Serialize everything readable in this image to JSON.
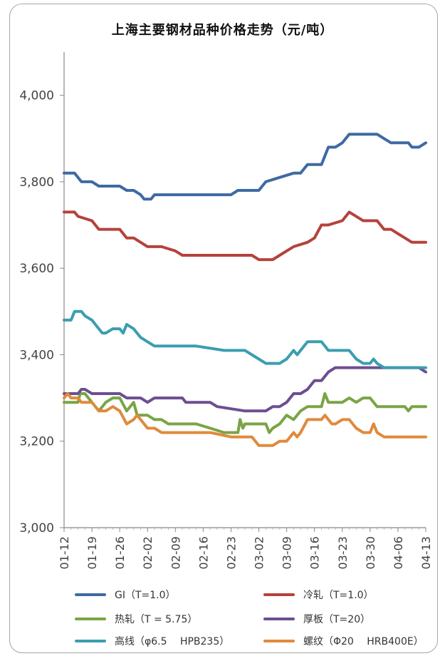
{
  "chart_data": {
    "type": "line",
    "title": "上海主要钢材品种价格走势（元/吨）",
    "xlabel": "",
    "ylabel": "",
    "ylim": [
      3000,
      4100
    ],
    "yticks": [
      3000,
      3200,
      3400,
      3600,
      3800,
      4000
    ],
    "ytick_labels": [
      "3,000",
      "3,200",
      "3,400",
      "3,600",
      "3,800",
      "4,000"
    ],
    "x": [
      "01-12",
      "01-19",
      "01-26",
      "02-02",
      "02-09",
      "02-16",
      "02-23",
      "03-02",
      "03-09",
      "03-16",
      "03-23",
      "03-30",
      "04-06",
      "04-13"
    ],
    "series": [
      {
        "name": "GI（T=1.0）",
        "color": "#3e6aa3",
        "points": [
          [
            0,
            3820
          ],
          [
            1.5,
            3820
          ],
          [
            2.5,
            3800
          ],
          [
            4,
            3800
          ],
          [
            5,
            3790
          ],
          [
            8,
            3790
          ],
          [
            9,
            3780
          ],
          [
            10,
            3780
          ],
          [
            11,
            3770
          ],
          [
            11.5,
            3760
          ],
          [
            12.5,
            3760
          ],
          [
            13,
            3770
          ],
          [
            24,
            3770
          ],
          [
            25,
            3780
          ],
          [
            28,
            3780
          ],
          [
            29,
            3800
          ],
          [
            31,
            3810
          ],
          [
            33,
            3820
          ],
          [
            34,
            3820
          ],
          [
            35,
            3840
          ],
          [
            37,
            3840
          ],
          [
            38,
            3880
          ],
          [
            39,
            3880
          ],
          [
            40,
            3890
          ],
          [
            41,
            3910
          ],
          [
            45,
            3910
          ],
          [
            46,
            3900
          ],
          [
            47,
            3890
          ],
          [
            49.5,
            3890
          ],
          [
            50,
            3880
          ],
          [
            51,
            3880
          ],
          [
            52,
            3890
          ]
        ]
      },
      {
        "name": "冷轧（T=1.0）",
        "color": "#b5423c",
        "points": [
          [
            0,
            3730
          ],
          [
            1.5,
            3730
          ],
          [
            2,
            3720
          ],
          [
            4,
            3710
          ],
          [
            5,
            3690
          ],
          [
            8,
            3690
          ],
          [
            9,
            3670
          ],
          [
            10,
            3670
          ],
          [
            11,
            3660
          ],
          [
            12,
            3650
          ],
          [
            14,
            3650
          ],
          [
            16,
            3640
          ],
          [
            17,
            3630
          ],
          [
            27,
            3630
          ],
          [
            28,
            3620
          ],
          [
            30,
            3620
          ],
          [
            31,
            3630
          ],
          [
            32,
            3640
          ],
          [
            33,
            3650
          ],
          [
            35,
            3660
          ],
          [
            36,
            3670
          ],
          [
            37,
            3700
          ],
          [
            38,
            3700
          ],
          [
            40,
            3710
          ],
          [
            41,
            3730
          ],
          [
            42,
            3720
          ],
          [
            43,
            3710
          ],
          [
            45,
            3710
          ],
          [
            46,
            3690
          ],
          [
            47,
            3690
          ],
          [
            48,
            3680
          ],
          [
            49,
            3670
          ],
          [
            50,
            3660
          ],
          [
            52,
            3660
          ]
        ]
      },
      {
        "name": "热轧（T = 5.75）",
        "color": "#7aa445",
        "points": [
          [
            0,
            3290
          ],
          [
            2,
            3290
          ],
          [
            2.3,
            3310
          ],
          [
            3,
            3310
          ],
          [
            4,
            3290
          ],
          [
            5,
            3270
          ],
          [
            6,
            3290
          ],
          [
            7,
            3300
          ],
          [
            8,
            3300
          ],
          [
            9,
            3270
          ],
          [
            10,
            3290
          ],
          [
            10.5,
            3260
          ],
          [
            12,
            3260
          ],
          [
            13,
            3250
          ],
          [
            14,
            3250
          ],
          [
            15,
            3240
          ],
          [
            19,
            3240
          ],
          [
            21,
            3230
          ],
          [
            23,
            3220
          ],
          [
            25,
            3220
          ],
          [
            25.3,
            3250
          ],
          [
            25.7,
            3230
          ],
          [
            26,
            3240
          ],
          [
            29,
            3240
          ],
          [
            29.5,
            3220
          ],
          [
            30,
            3230
          ],
          [
            31,
            3240
          ],
          [
            32,
            3260
          ],
          [
            33,
            3250
          ],
          [
            34,
            3270
          ],
          [
            35,
            3280
          ],
          [
            37,
            3280
          ],
          [
            37.5,
            3310
          ],
          [
            38,
            3290
          ],
          [
            40,
            3290
          ],
          [
            41,
            3300
          ],
          [
            42,
            3290
          ],
          [
            43,
            3300
          ],
          [
            44,
            3300
          ],
          [
            45,
            3280
          ],
          [
            49,
            3280
          ],
          [
            49.5,
            3270
          ],
          [
            50,
            3280
          ],
          [
            52,
            3280
          ]
        ]
      },
      {
        "name": "厚板（T=20）",
        "color": "#6c4e91",
        "points": [
          [
            0,
            3310
          ],
          [
            2,
            3310
          ],
          [
            2.5,
            3320
          ],
          [
            3,
            3320
          ],
          [
            4,
            3310
          ],
          [
            8,
            3310
          ],
          [
            9,
            3300
          ],
          [
            11,
            3300
          ],
          [
            12,
            3290
          ],
          [
            13,
            3300
          ],
          [
            17,
            3300
          ],
          [
            17.5,
            3290
          ],
          [
            21,
            3290
          ],
          [
            22,
            3280
          ],
          [
            26,
            3270
          ],
          [
            29,
            3270
          ],
          [
            30,
            3280
          ],
          [
            31,
            3280
          ],
          [
            32,
            3290
          ],
          [
            33,
            3310
          ],
          [
            34,
            3310
          ],
          [
            35,
            3320
          ],
          [
            36,
            3340
          ],
          [
            37,
            3340
          ],
          [
            38,
            3360
          ],
          [
            39,
            3370
          ],
          [
            51,
            3370
          ],
          [
            52,
            3360
          ]
        ]
      },
      {
        "name": "高线（φ6.5 　HPB235）",
        "color": "#3a9eb0",
        "points": [
          [
            0,
            3480
          ],
          [
            1,
            3480
          ],
          [
            1.5,
            3500
          ],
          [
            2.5,
            3500
          ],
          [
            3,
            3490
          ],
          [
            4,
            3480
          ],
          [
            5,
            3460
          ],
          [
            5.5,
            3450
          ],
          [
            6,
            3450
          ],
          [
            7,
            3460
          ],
          [
            8,
            3460
          ],
          [
            8.5,
            3450
          ],
          [
            9,
            3470
          ],
          [
            10,
            3460
          ],
          [
            11,
            3440
          ],
          [
            12,
            3430
          ],
          [
            13,
            3420
          ],
          [
            19,
            3420
          ],
          [
            23,
            3410
          ],
          [
            26,
            3410
          ],
          [
            27,
            3400
          ],
          [
            28,
            3390
          ],
          [
            29,
            3380
          ],
          [
            31,
            3380
          ],
          [
            32,
            3390
          ],
          [
            33,
            3410
          ],
          [
            33.5,
            3400
          ],
          [
            34,
            3410
          ],
          [
            35,
            3430
          ],
          [
            37,
            3430
          ],
          [
            38,
            3410
          ],
          [
            41,
            3410
          ],
          [
            42,
            3390
          ],
          [
            43,
            3380
          ],
          [
            44,
            3380
          ],
          [
            44.5,
            3390
          ],
          [
            45,
            3380
          ],
          [
            46,
            3370
          ],
          [
            52,
            3370
          ]
        ]
      },
      {
        "name": "螺纹（Φ20 　HRB400E）",
        "color": "#e08a3c",
        "points": [
          [
            0,
            3300
          ],
          [
            0.5,
            3310
          ],
          [
            1,
            3300
          ],
          [
            2,
            3300
          ],
          [
            2.5,
            3290
          ],
          [
            4,
            3290
          ],
          [
            5,
            3270
          ],
          [
            6,
            3270
          ],
          [
            7,
            3280
          ],
          [
            8,
            3270
          ],
          [
            9,
            3240
          ],
          [
            10,
            3250
          ],
          [
            10.5,
            3260
          ],
          [
            11,
            3250
          ],
          [
            12,
            3230
          ],
          [
            13,
            3230
          ],
          [
            14,
            3220
          ],
          [
            21,
            3220
          ],
          [
            24,
            3210
          ],
          [
            27,
            3210
          ],
          [
            28,
            3190
          ],
          [
            30,
            3190
          ],
          [
            31,
            3200
          ],
          [
            32,
            3200
          ],
          [
            33,
            3220
          ],
          [
            33.5,
            3210
          ],
          [
            34,
            3220
          ],
          [
            35,
            3250
          ],
          [
            37,
            3250
          ],
          [
            37.5,
            3260
          ],
          [
            38,
            3250
          ],
          [
            38.5,
            3240
          ],
          [
            39,
            3240
          ],
          [
            40,
            3250
          ],
          [
            41,
            3250
          ],
          [
            42,
            3230
          ],
          [
            43,
            3220
          ],
          [
            44,
            3220
          ],
          [
            44.5,
            3240
          ],
          [
            45,
            3220
          ],
          [
            46,
            3210
          ],
          [
            52,
            3210
          ]
        ]
      }
    ],
    "legend": "bottom",
    "grid": false
  }
}
